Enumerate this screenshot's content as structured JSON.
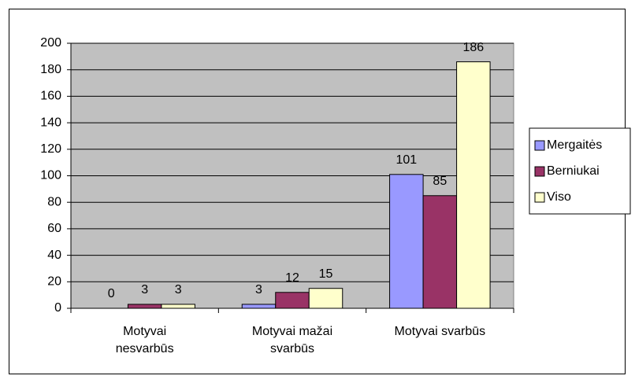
{
  "chart_data": {
    "type": "bar",
    "categories": [
      "Motyvai\nnesvarbūs",
      "Motyvai mažai\nsvarbūs",
      "Motyvai svarbūs"
    ],
    "series": [
      {
        "name": "Mergaitės",
        "color": "#9999ff",
        "values": [
          0,
          3,
          101
        ]
      },
      {
        "name": "Berniukai",
        "color": "#993366",
        "values": [
          3,
          12,
          85
        ]
      },
      {
        "name": "Viso",
        "color": "#ffffcc",
        "values": [
          3,
          15,
          186
        ]
      }
    ],
    "ylim": [
      0,
      200
    ],
    "yticks": [
      0,
      20,
      40,
      60,
      80,
      100,
      120,
      140,
      160,
      180,
      200
    ],
    "grid": true,
    "legend": "right",
    "plot_background": "#c0c0c0"
  }
}
